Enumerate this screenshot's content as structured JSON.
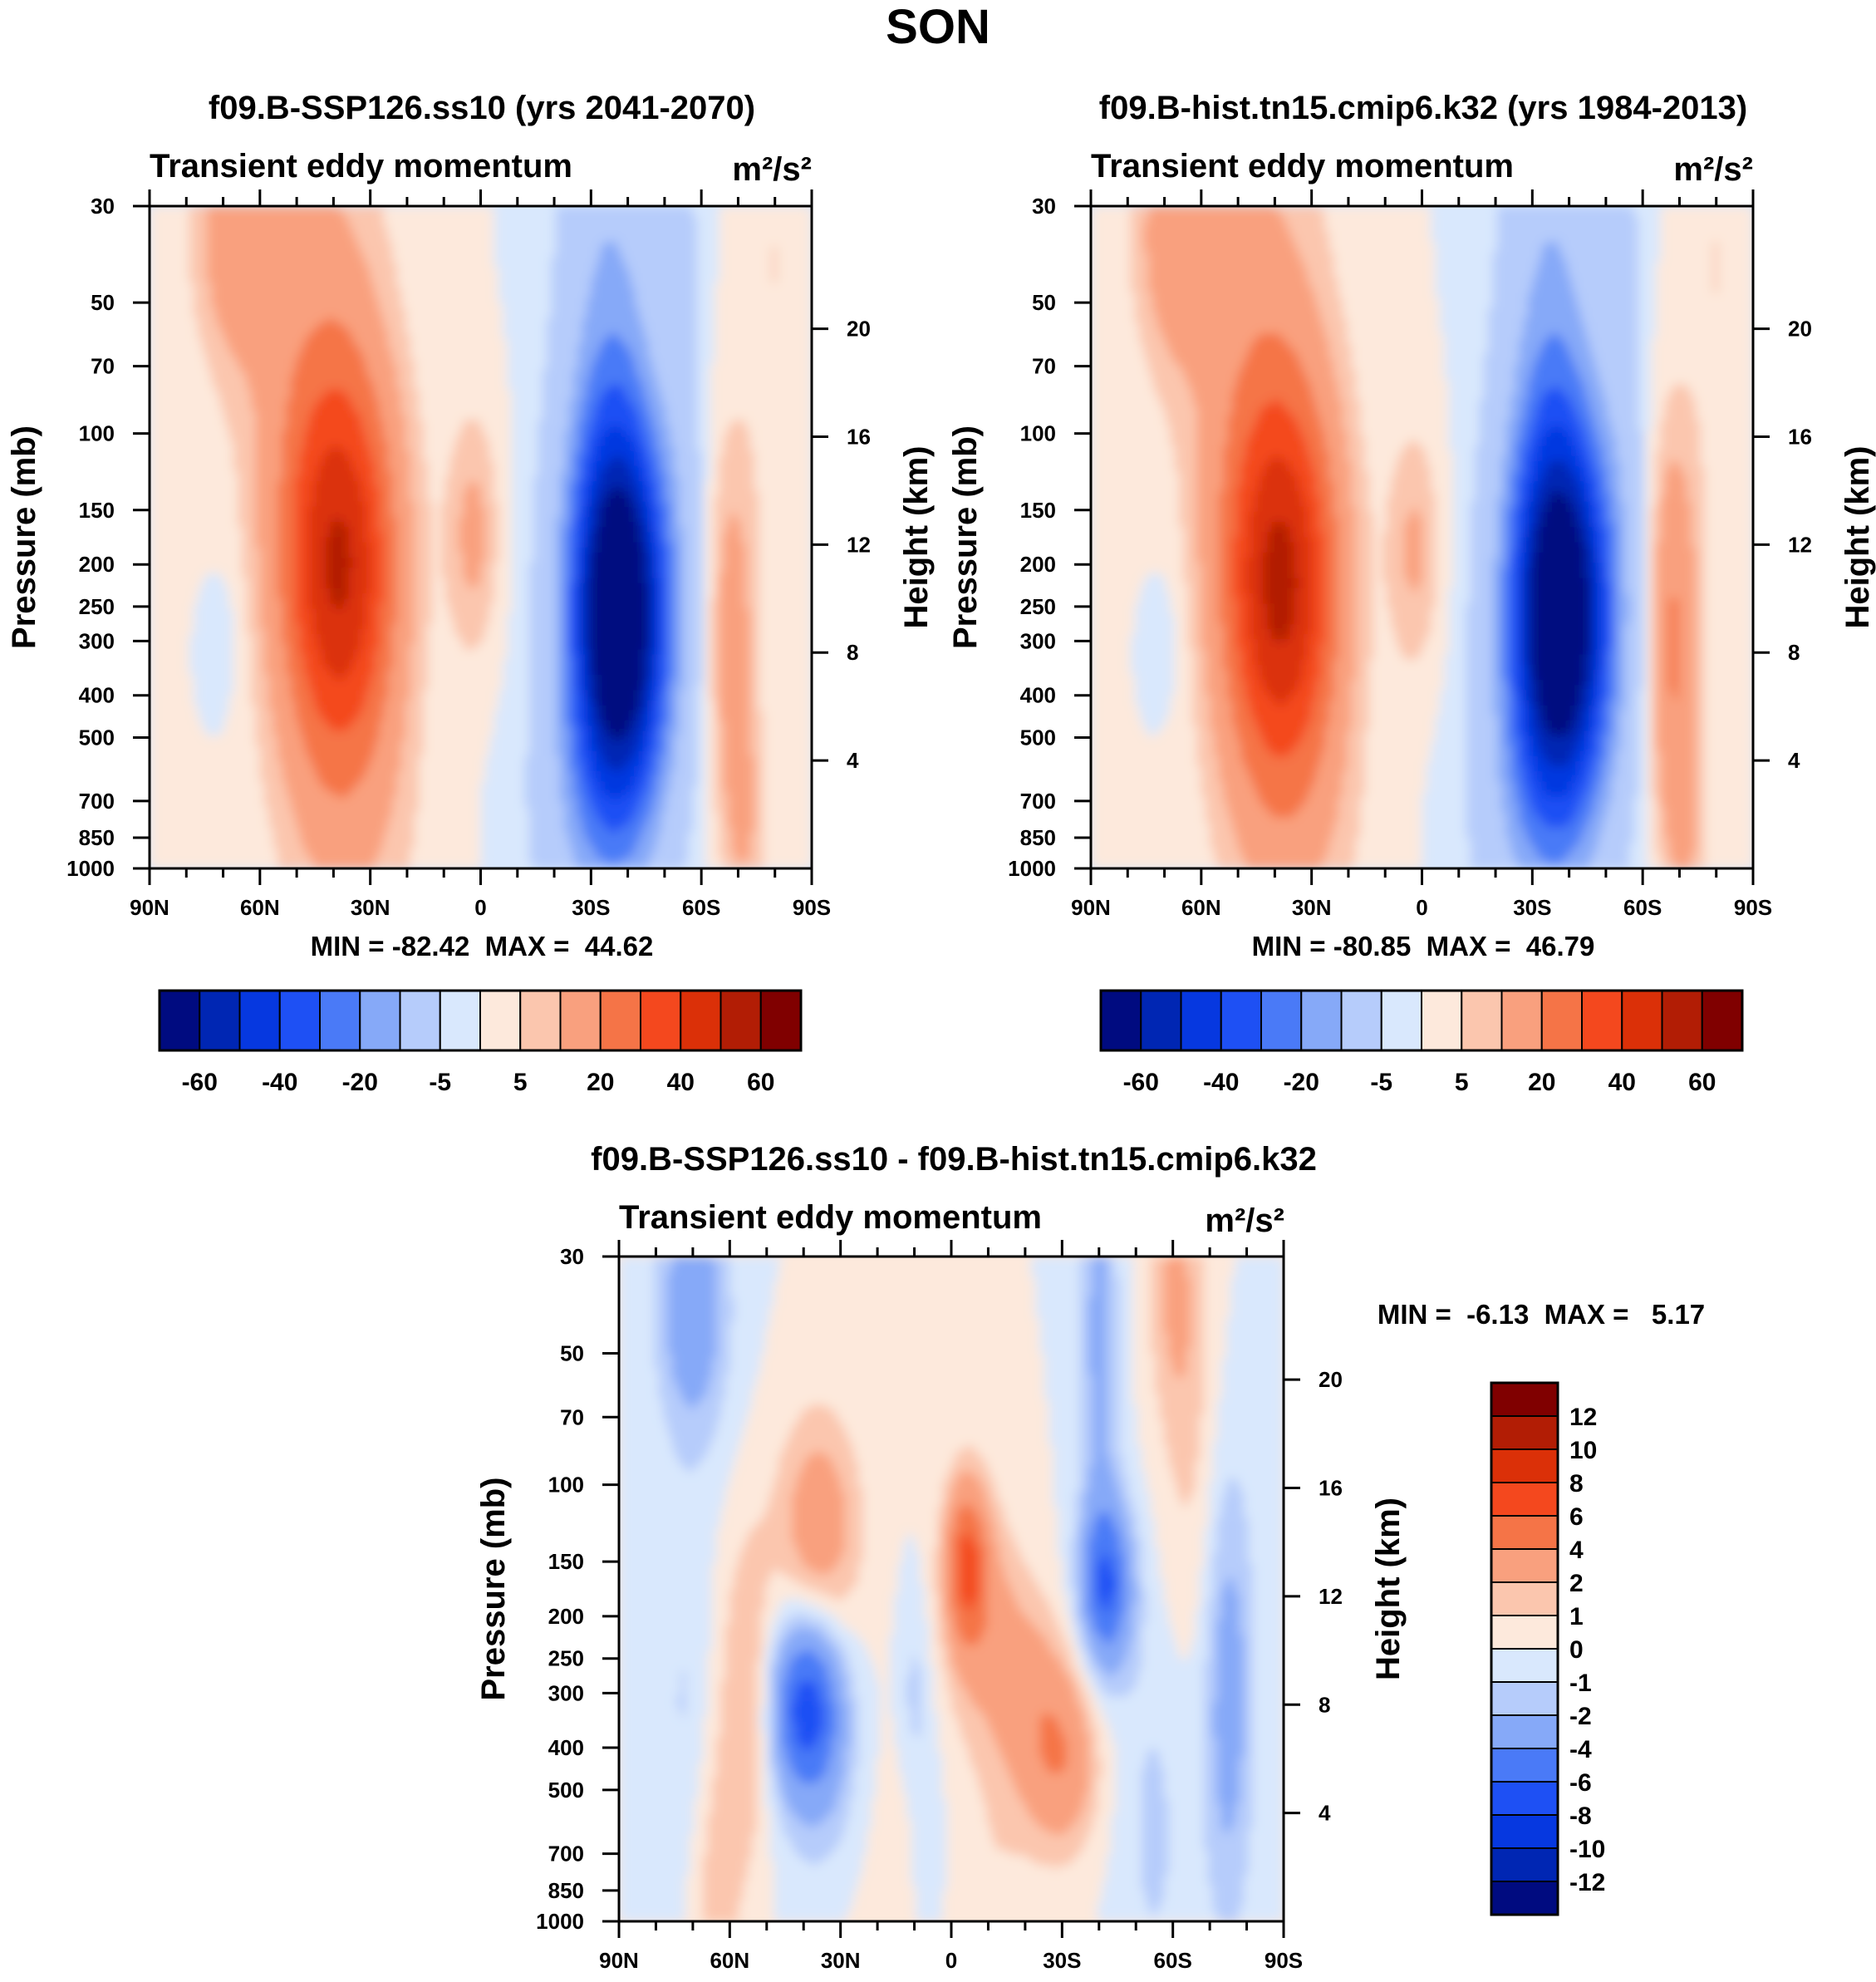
{
  "figure_title": "SON",
  "chart_data": [
    {
      "type": "heatmap",
      "panel": "top-left",
      "title": "f09.B-SSP126.ss10 (yrs 2041-2070)",
      "variable": "Transient eddy momentum",
      "units": "m²/s²",
      "xlabel": "",
      "ylabel": "Pressure (mb)",
      "ylabel_right": "Height (km)",
      "x_ticks": [
        "90N",
        "60N",
        "30N",
        "0",
        "30S",
        "60S",
        "90S"
      ],
      "y_ticks": [
        "30",
        "50",
        "70",
        "100",
        "150",
        "200",
        "250",
        "300",
        "400",
        "500",
        "700",
        "850",
        "1000"
      ],
      "y_ticks_right": [
        "20",
        "16",
        "12",
        "8",
        "4"
      ],
      "minmax_text": "MIN = -82.42  MAX =  44.62",
      "min": -82.42,
      "max": 44.62,
      "contour_levels": [
        -70,
        -60,
        -50,
        -40,
        -30,
        -20,
        -10,
        -5,
        0,
        5,
        10,
        20,
        30,
        40,
        50,
        60,
        70
      ],
      "colorbar_labels": [
        "-60",
        "-40",
        "-20",
        "-5",
        "5",
        "20",
        "40",
        "60"
      ],
      "features": [
        {
          "kind": "min",
          "lat": -38,
          "p": 270,
          "value": -82.42
        },
        {
          "kind": "max",
          "lat": 38,
          "p": 210,
          "value": 44.62
        },
        {
          "kind": "max",
          "lat": -68,
          "p": 290,
          "value": 15
        },
        {
          "kind": "max",
          "lat": 2,
          "p": 170,
          "value": 12
        },
        {
          "kind": "max",
          "lat": 67,
          "p": 35,
          "value": 14
        }
      ]
    },
    {
      "type": "heatmap",
      "panel": "top-right",
      "title": "f09.B-hist.tn15.cmip6.k32 (yrs 1984-2013)",
      "variable": "Transient eddy momentum",
      "units": "m²/s²",
      "xlabel": "",
      "ylabel": "Pressure (mb)",
      "ylabel_right": "Height (km)",
      "x_ticks": [
        "90N",
        "60N",
        "30N",
        "0",
        "30S",
        "60S",
        "90S"
      ],
      "y_ticks": [
        "30",
        "50",
        "70",
        "100",
        "150",
        "200",
        "250",
        "300",
        "400",
        "500",
        "700",
        "850",
        "1000"
      ],
      "y_ticks_right": [
        "20",
        "16",
        "12",
        "8",
        "4"
      ],
      "minmax_text": "MIN = -80.85  MAX =  46.79",
      "min": -80.85,
      "max": 46.79,
      "contour_levels": [
        -70,
        -60,
        -50,
        -40,
        -30,
        -20,
        -10,
        -5,
        0,
        5,
        10,
        20,
        30,
        40,
        50,
        60,
        70
      ],
      "colorbar_labels": [
        "-60",
        "-40",
        "-20",
        "-5",
        "5",
        "20",
        "40",
        "60"
      ],
      "features": [
        {
          "kind": "min",
          "lat": -38,
          "p": 270,
          "value": -80.85
        },
        {
          "kind": "max",
          "lat": 38,
          "p": 230,
          "value": 46.79
        },
        {
          "kind": "max",
          "lat": -68,
          "p": 290,
          "value": 22
        },
        {
          "kind": "max",
          "lat": 2,
          "p": 185,
          "value": 11
        },
        {
          "kind": "max",
          "lat": 67,
          "p": 35,
          "value": 15
        }
      ]
    },
    {
      "type": "heatmap",
      "panel": "bottom",
      "title": "f09.B-SSP126.ss10 - f09.B-hist.tn15.cmip6.k32",
      "variable": "Transient eddy momentum",
      "units": "m²/s²",
      "xlabel": "",
      "ylabel": "Pressure (mb)",
      "ylabel_right": "Height (km)",
      "x_ticks": [
        "90N",
        "60N",
        "30N",
        "0",
        "30S",
        "60S",
        "90S"
      ],
      "y_ticks": [
        "30",
        "50",
        "70",
        "100",
        "150",
        "200",
        "250",
        "300",
        "400",
        "500",
        "700",
        "850",
        "1000"
      ],
      "y_ticks_right": [
        "20",
        "16",
        "12",
        "8",
        "4"
      ],
      "minmax_text": "MIN =  -6.13  MAX =   5.17",
      "min": -6.13,
      "max": 5.17,
      "contour_levels": [
        -12,
        -10,
        -8,
        -6,
        -4,
        -2,
        -1,
        0,
        1,
        2,
        4,
        6,
        8,
        10,
        12
      ],
      "colorbar_labels": [
        "12",
        "10",
        "8",
        "6",
        "4",
        "2",
        "1",
        "0",
        "-1",
        "-2",
        "-4",
        "-6",
        "-8",
        "-10",
        "-12"
      ],
      "features": [
        {
          "kind": "min",
          "lat": 39,
          "p": 320,
          "value": -6.13
        },
        {
          "kind": "max",
          "lat": -4,
          "p": 150,
          "value": 5.17
        },
        {
          "kind": "min",
          "lat": -42,
          "p": 170,
          "value": -5.5
        },
        {
          "kind": "max",
          "lat": 31,
          "p": 130,
          "value": 3.2
        },
        {
          "kind": "max",
          "lat": -32,
          "p": 400,
          "value": 3.5
        },
        {
          "kind": "min",
          "lat": 70,
          "p": 45,
          "value": -3
        }
      ]
    }
  ]
}
